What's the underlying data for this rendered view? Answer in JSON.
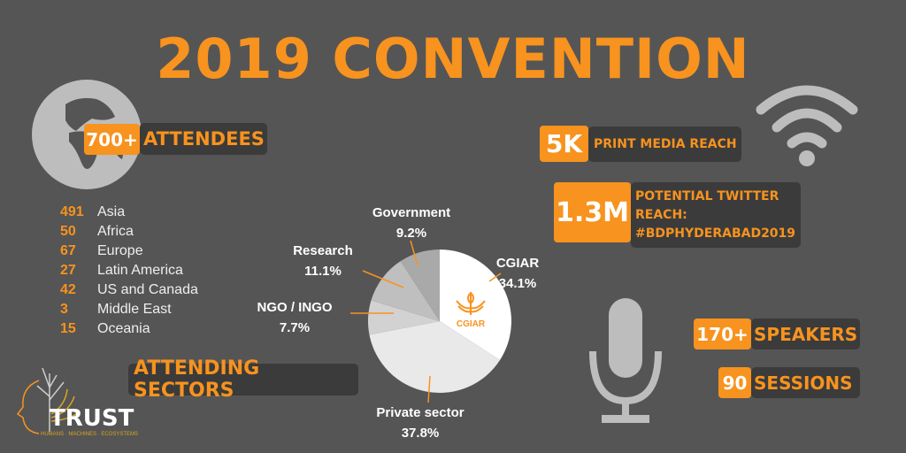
{
  "title": "2019 CONVENTION",
  "attendees": {
    "count": "700+",
    "label": "ATTENDEES"
  },
  "regions": [
    {
      "count": "491",
      "name": "Asia"
    },
    {
      "count": "50",
      "name": "Africa"
    },
    {
      "count": "67",
      "name": "Europe"
    },
    {
      "count": "27",
      "name": "Latin America"
    },
    {
      "count": "42",
      "name": "US and Canada"
    },
    {
      "count": "3",
      "name": "Middle East"
    },
    {
      "count": "15",
      "name": "Oceania"
    }
  ],
  "print_media": {
    "value": "5K",
    "label": "PRINT MEDIA REACH"
  },
  "twitter": {
    "value": "1.3M",
    "label_line1": "POTENTIAL TWITTER",
    "label_line2": "REACH:",
    "hashtag": "#BDPHYDERABAD2019"
  },
  "speakers": {
    "value": "170+",
    "label": "SPEAKERS"
  },
  "sessions": {
    "value": "90",
    "label": "SESSIONS"
  },
  "sectors_label": "ATTENDING SECTORS",
  "logo": {
    "name": "TRUST",
    "tagline": "HUMANS · MACHINES · ECOSYSTEMS"
  },
  "cgiar_logo_text": "CGIAR",
  "colors": {
    "accent": "#F7931E",
    "background": "#555555",
    "box": "#3b3b3b"
  },
  "chart_data": {
    "type": "pie",
    "title": "ATTENDING SECTORS",
    "slices": [
      {
        "label": "CGIAR",
        "value": 34.1,
        "display": "34.1%",
        "color": "#ffffff"
      },
      {
        "label": "Private sector",
        "value": 37.8,
        "display": "37.8%",
        "color": "#e9e9e9"
      },
      {
        "label": "NGO / INGO",
        "value": 7.7,
        "display": "7.7%",
        "color": "#d2d2d2"
      },
      {
        "label": "Research",
        "value": 11.1,
        "display": "11.1%",
        "color": "#bfbfbf"
      },
      {
        "label": "Government",
        "value": 9.2,
        "display": "9.2%",
        "color": "#a9a9a9"
      }
    ]
  }
}
